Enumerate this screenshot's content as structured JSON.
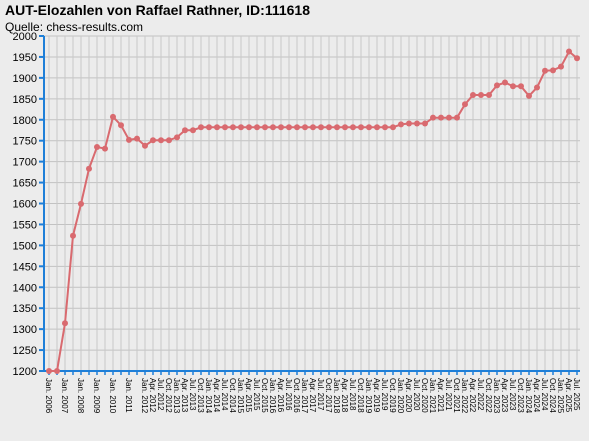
{
  "title": "AUT-Elozahlen von Raffael Rathner, ID:111618",
  "subtitle": "Quelle: chess-results.com",
  "chart_data": {
    "type": "line",
    "ylim": [
      1200,
      2000
    ],
    "yticks": [
      1200,
      1250,
      1300,
      1350,
      1400,
      1450,
      1500,
      1550,
      1600,
      1650,
      1700,
      1750,
      1800,
      1850,
      1900,
      1950,
      2000
    ],
    "grid": true,
    "legend": "none",
    "line_color": "#d96a6f",
    "axis_color": "#1e7fd8",
    "categories": [
      "Jan. 2006",
      "",
      "Jan. 2007",
      "",
      "Jan. 2008",
      "",
      "Jan. 2009",
      "",
      "Jan. 2010",
      "",
      "Jan. 2011",
      "",
      "Jan. 2012",
      "Apr. 2012",
      "Jul. 2012",
      "Oct. 2012",
      "Jan. 2013",
      "Apr. 2013",
      "Jul. 2013",
      "Oct. 2013",
      "Jan. 2014",
      "Apr. 2014",
      "Jul. 2014",
      "Oct. 2014",
      "Jan. 2015",
      "Apr. 2015",
      "Jul. 2015",
      "Oct. 2015",
      "Jan. 2016",
      "Apr. 2016",
      "Jul. 2016",
      "Oct. 2016",
      "Jan. 2017",
      "Apr. 2017",
      "Jul. 2017",
      "Oct. 2017",
      "Jan. 2018",
      "Apr. 2018",
      "Jul. 2018",
      "Oct. 2018",
      "Jan. 2019",
      "Apr. 2019",
      "Jul. 2019",
      "Oct. 2019",
      "Jan. 2020",
      "Apr. 2020",
      "Jul. 2020",
      "Oct. 2020",
      "Jan. 2021",
      "Apr. 2021",
      "Jul. 2021",
      "Oct. 2021",
      "Jan. 2022",
      "Apr. 2022",
      "Jul. 2022",
      "Oct. 2022",
      "Jan. 2023",
      "Apr. 2023",
      "Jul. 2023",
      "Oct. 2023",
      "Jan. 2024",
      "Apr. 2024",
      "Jul. 2024",
      "Oct. 2024",
      "Jan. 2025",
      "Apr. 2025",
      "Jul. 2025"
    ],
    "values": [
      1200,
      1200,
      1314,
      1523,
      1599,
      1683,
      1735,
      1731,
      1807,
      1787,
      1752,
      1755,
      1738,
      1751,
      1751,
      1751,
      1758,
      1775,
      1775,
      1782,
      1782,
      1782,
      1782,
      1782,
      1782,
      1782,
      1782,
      1782,
      1782,
      1782,
      1782,
      1782,
      1782,
      1782,
      1782,
      1782,
      1782,
      1782,
      1782,
      1782,
      1782,
      1782,
      1782,
      1782,
      1789,
      1791,
      1791,
      1791,
      1805,
      1805,
      1805,
      1805,
      1837,
      1859,
      1859,
      1859,
      1882,
      1889,
      1880,
      1880,
      1857,
      1877,
      1917,
      1918,
      1927,
      1963,
      1947
    ]
  }
}
